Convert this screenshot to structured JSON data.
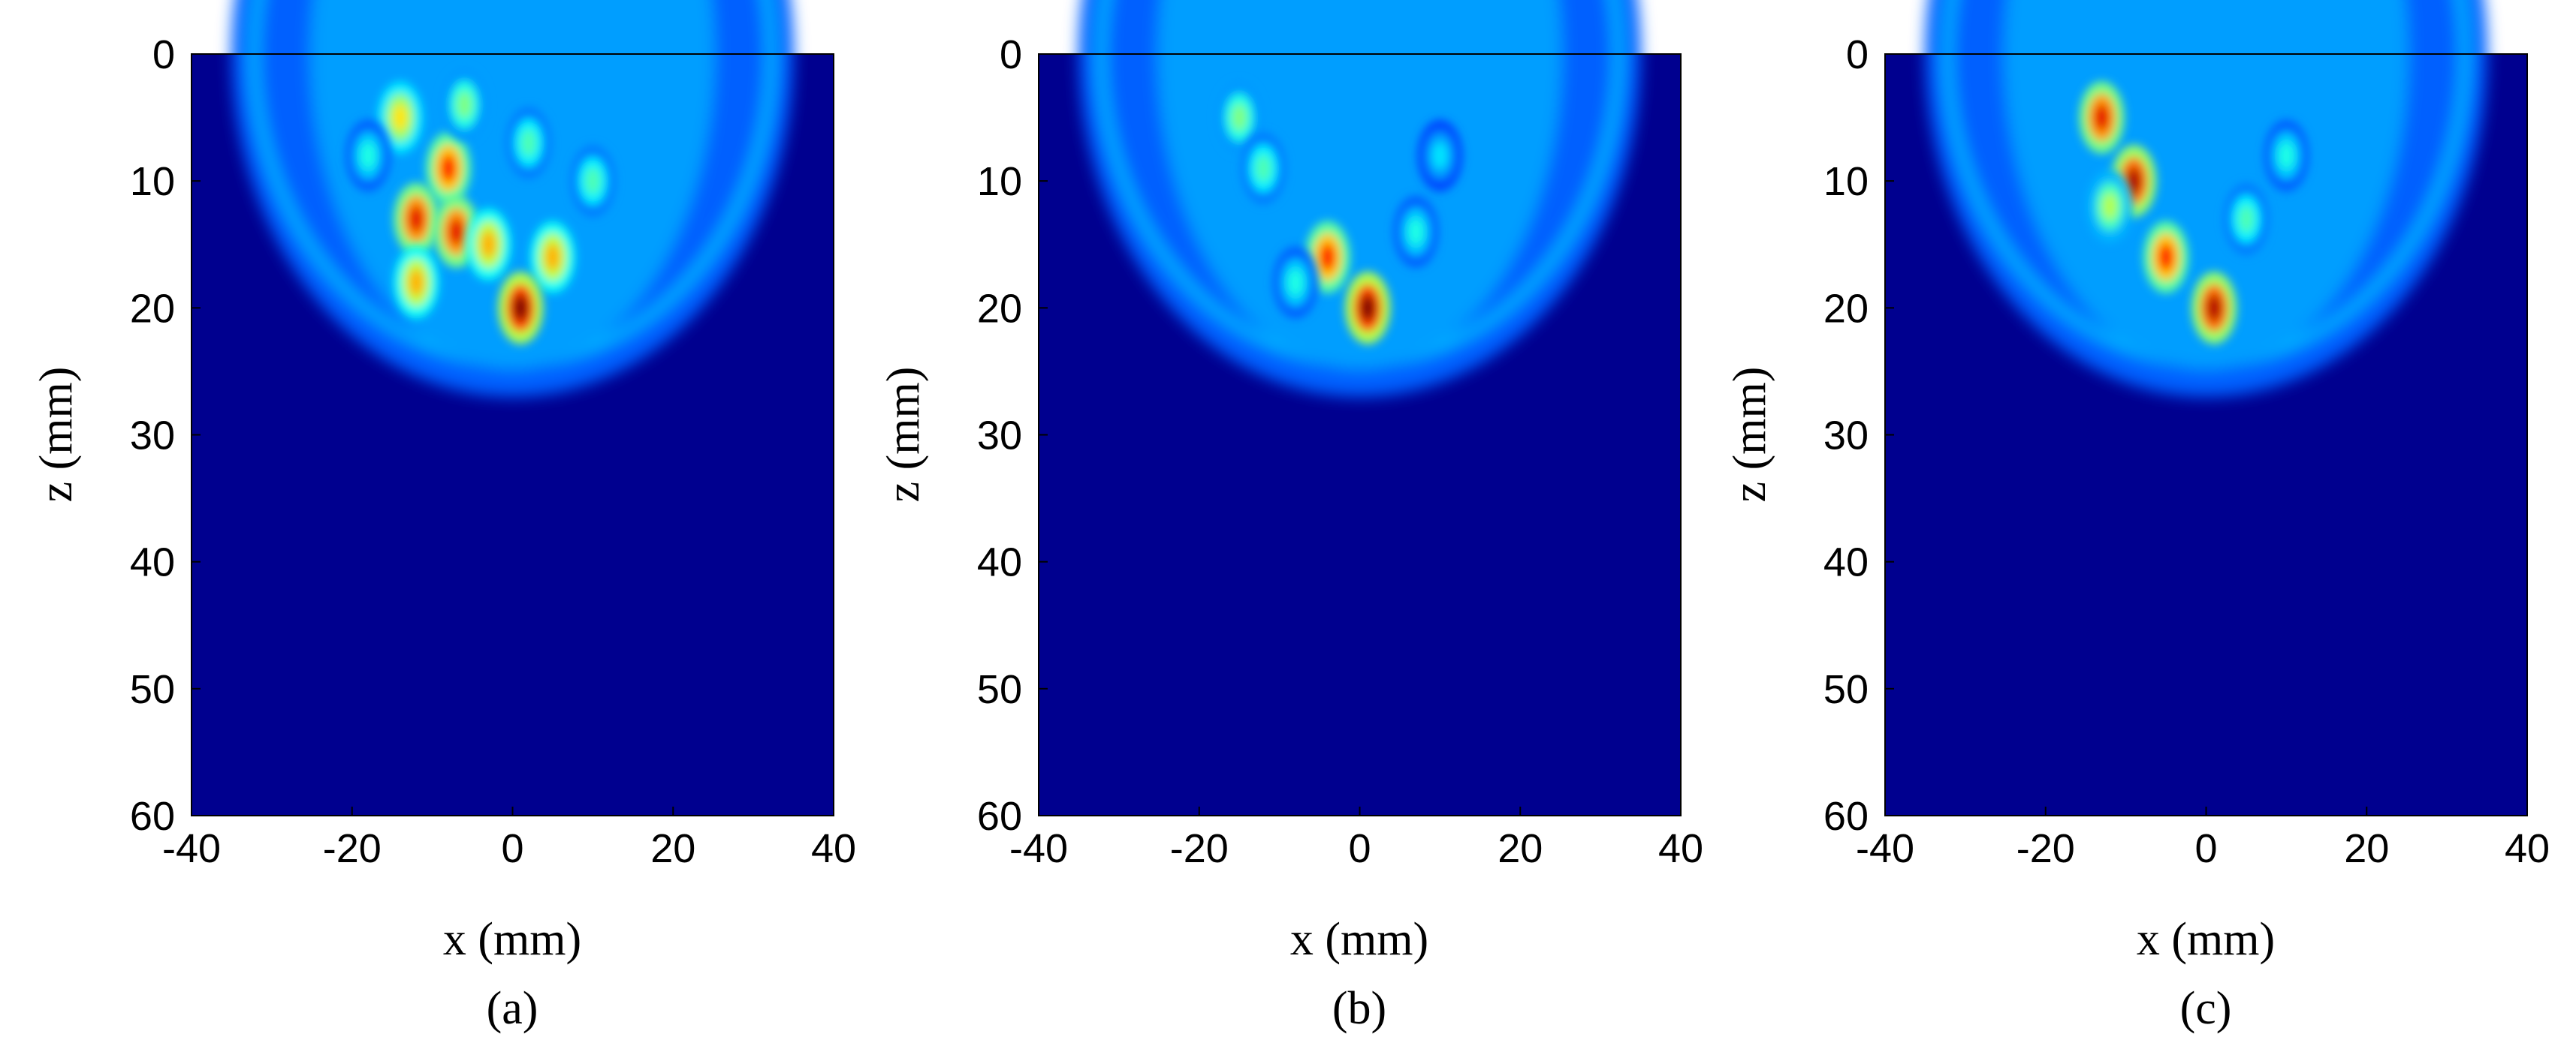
{
  "figure": {
    "panels": [
      {
        "id": "a",
        "label": "(a)"
      },
      {
        "id": "b",
        "label": "(b)"
      },
      {
        "id": "c",
        "label": "(c)"
      }
    ]
  },
  "chart_data": [
    {
      "type": "heatmap",
      "panel": "(a)",
      "xlabel": "x (mm)",
      "ylabel": "z (mm)",
      "xlim": [
        -40,
        40
      ],
      "ylim": [
        60,
        0
      ],
      "xticks": [
        "-40",
        "-20",
        "0",
        "20",
        "40"
      ],
      "yticks": [
        "0",
        "10",
        "20",
        "30",
        "40",
        "50",
        "60"
      ],
      "colormap": "jet",
      "background_value": 0.0,
      "region": {
        "type": "semi-ellipse",
        "center_x": 0,
        "center_z": 0,
        "radius_x": 35,
        "radius_z": 27
      },
      "hotspots": [
        {
          "x": -14,
          "z": 5,
          "v": 0.65
        },
        {
          "x": -8,
          "z": 9,
          "v": 0.85
        },
        {
          "x": -12,
          "z": 13,
          "v": 0.9
        },
        {
          "x": -7,
          "z": 14,
          "v": 0.9
        },
        {
          "x": -12,
          "z": 18,
          "v": 0.7
        },
        {
          "x": -3,
          "z": 15,
          "v": 0.7
        },
        {
          "x": 5,
          "z": 16,
          "v": 0.7
        },
        {
          "x": 1,
          "z": 20,
          "v": 1.0
        },
        {
          "x": -6,
          "z": 4,
          "v": 0.5
        },
        {
          "x": 2,
          "z": 7,
          "v": 0.45
        },
        {
          "x": 10,
          "z": 10,
          "v": 0.45
        },
        {
          "x": -18,
          "z": 8,
          "v": 0.4
        }
      ]
    },
    {
      "type": "heatmap",
      "panel": "(b)",
      "xlabel": "x (mm)",
      "ylabel": "z (mm)",
      "xlim": [
        -40,
        40
      ],
      "ylim": [
        60,
        0
      ],
      "xticks": [
        "-40",
        "-20",
        "0",
        "20",
        "40"
      ],
      "yticks": [
        "0",
        "10",
        "20",
        "30",
        "40",
        "50",
        "60"
      ],
      "colormap": "jet",
      "background_value": 0.0,
      "region": {
        "type": "semi-ellipse",
        "center_x": 0,
        "center_z": 0,
        "radius_x": 35,
        "radius_z": 27
      },
      "hotspots": [
        {
          "x": -15,
          "z": 5,
          "v": 0.5
        },
        {
          "x": -12,
          "z": 9,
          "v": 0.45
        },
        {
          "x": -4,
          "z": 16,
          "v": 0.85
        },
        {
          "x": 1,
          "z": 20,
          "v": 1.0
        },
        {
          "x": -8,
          "z": 18,
          "v": 0.4
        },
        {
          "x": 7,
          "z": 14,
          "v": 0.4
        },
        {
          "x": 10,
          "z": 8,
          "v": 0.35
        }
      ]
    },
    {
      "type": "heatmap",
      "panel": "(c)",
      "xlabel": "x (mm)",
      "ylabel": "z (mm)",
      "xlim": [
        -40,
        40
      ],
      "ylim": [
        60,
        0
      ],
      "xticks": [
        "-40",
        "-20",
        "0",
        "20",
        "40"
      ],
      "yticks": [
        "0",
        "10",
        "20",
        "30",
        "40",
        "50",
        "60"
      ],
      "colormap": "jet",
      "background_value": 0.0,
      "region": {
        "type": "semi-ellipse",
        "center_x": 0,
        "center_z": 0,
        "radius_x": 35,
        "radius_z": 27
      },
      "hotspots": [
        {
          "x": -13,
          "z": 5,
          "v": 0.9
        },
        {
          "x": -9,
          "z": 10,
          "v": 0.95
        },
        {
          "x": -5,
          "z": 16,
          "v": 0.85
        },
        {
          "x": 1,
          "z": 20,
          "v": 0.95
        },
        {
          "x": -12,
          "z": 12,
          "v": 0.55
        },
        {
          "x": 5,
          "z": 13,
          "v": 0.45
        },
        {
          "x": 10,
          "z": 8,
          "v": 0.4
        }
      ]
    }
  ]
}
